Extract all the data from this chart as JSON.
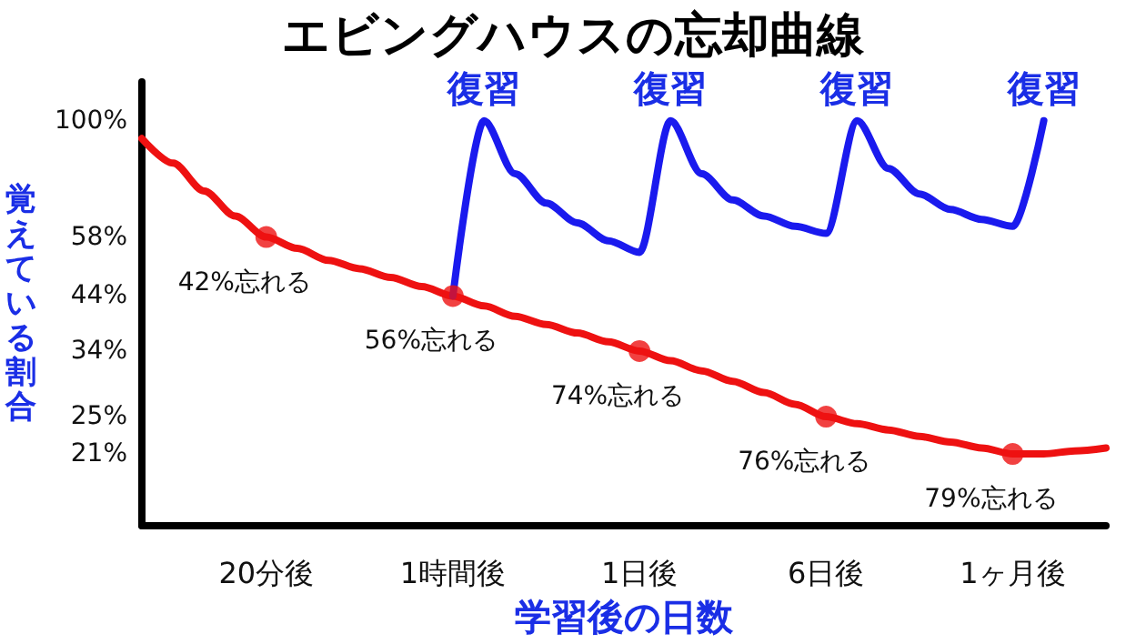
{
  "chart_data": {
    "type": "line",
    "title": "エビングハウスの忘却曲線",
    "xlabel": "学習後の日数",
    "ylabel": "覚えている割合",
    "log": "y",
    "ylim": [
      15,
      120
    ],
    "categories": [
      null,
      null,
      null,
      null,
      "20分後",
      null,
      null,
      null,
      null,
      null,
      "1時間後",
      null,
      null,
      null,
      null,
      null,
      "1日後",
      null,
      null,
      null,
      null,
      null,
      "6日後",
      null,
      null,
      null,
      null,
      null,
      "1ヶ月後",
      null,
      null,
      null
    ],
    "yticks": [
      {
        "value": 21,
        "label": "21%"
      },
      {
        "value": 25,
        "label": "25%"
      },
      {
        "value": 34,
        "label": "34%"
      },
      {
        "value": 44,
        "label": "44%"
      },
      {
        "value": 58,
        "label": "58%"
      },
      {
        "value": 100,
        "label": "100%"
      }
    ],
    "grid": false,
    "marker": "none",
    "series": [
      {
        "color": "#ee1111",
        "values": [
          92,
          82,
          72,
          64,
          58,
          55,
          52,
          50,
          48,
          46,
          44,
          42,
          40,
          38.5,
          37,
          35.5,
          34,
          32.5,
          31,
          29.5,
          28,
          26.5,
          25,
          24.2,
          23.5,
          22.8,
          22.2,
          21.6,
          21,
          21,
          21.3,
          21.6
        ]
      },
      {
        "type": "scatter",
        "color": "#ee1111",
        "marker": "circle",
        "x": [
          "20分後",
          "1時間後",
          "1日後",
          "6日後",
          "1ヶ月後"
        ],
        "values": [
          58,
          44,
          34,
          25,
          21
        ]
      },
      {
        "color": "#1a1aee",
        "values": [
          null,
          null,
          null,
          null,
          null,
          null,
          null,
          null,
          null,
          null,
          44,
          100,
          78,
          68,
          62,
          57,
          54,
          100,
          78,
          69,
          64,
          61,
          59,
          100,
          80,
          71,
          66,
          63,
          61,
          100,
          null,
          null
        ]
      }
    ],
    "annotations": [
      "復習",
      "復習",
      "復習",
      "復習",
      {
        "text": "42%忘れる",
        "x": "20分後",
        "y": 58
      },
      {
        "text": "56%忘れる",
        "x": "1時間後",
        "y": 44
      },
      {
        "text": "74%忘れる",
        "x": "1日後",
        "y": 34
      },
      {
        "text": "76%忘れる",
        "x": "6日後",
        "y": 25
      },
      {
        "text": "79%忘れる",
        "x": "1ヶ月後",
        "y": 21
      }
    ]
  }
}
